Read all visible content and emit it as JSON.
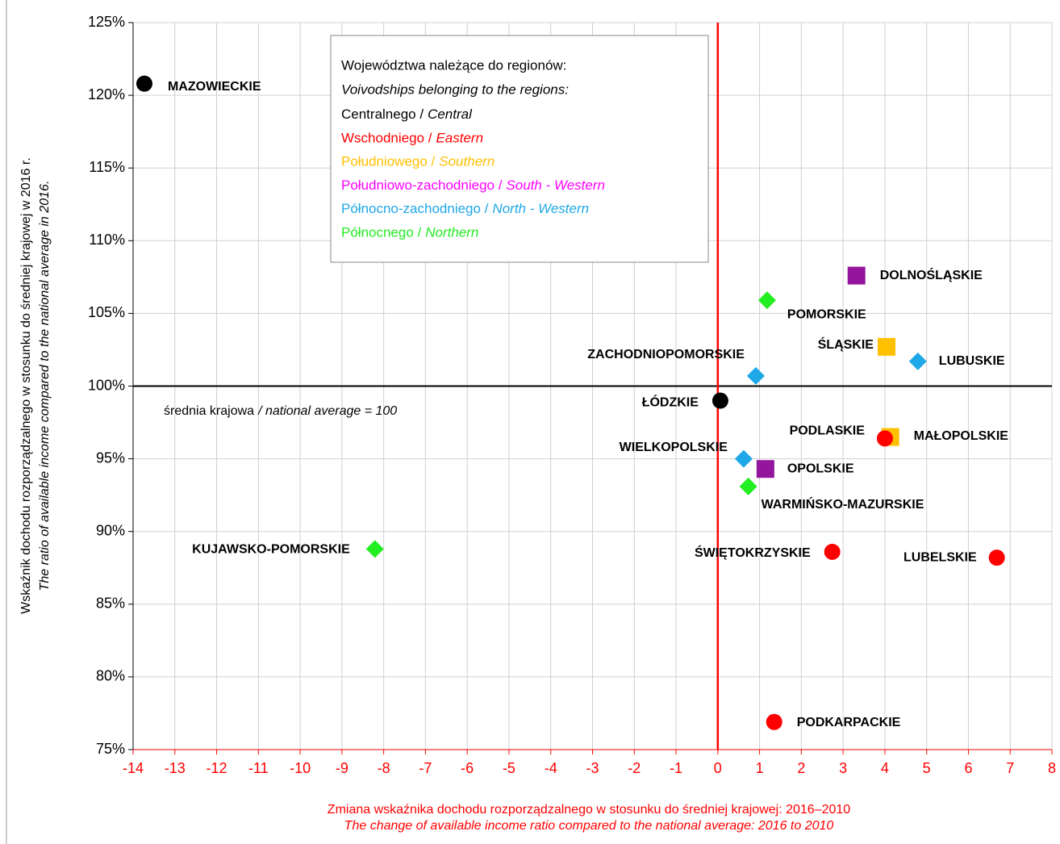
{
  "chart_data": {
    "type": "scatter",
    "xlabel": "Zmiana wskaźnika dochodu rozporządzalnego w stosunku do średniej krajowej: 2016–2010",
    "xlabel_en": "The change of available income ratio compared to the national average: 2016 to 2010",
    "ylabel": "Wskaźnik dochodu rozporządzalnego w stosunku do średniej krajowej w 2016 r.",
    "ylabel_en": "The ratio of available income compared to the national average in 2016.",
    "xlim": [
      -14,
      8
    ],
    "xticks": [
      -14,
      -13,
      -12,
      -11,
      -10,
      -9,
      -8,
      -7,
      -6,
      -5,
      -4,
      -3,
      -2,
      -1,
      0,
      1,
      2,
      3,
      4,
      5,
      6,
      7,
      8
    ],
    "ylim": [
      75,
      125
    ],
    "yticks": [
      {
        "value": 75,
        "label": "75%"
      },
      {
        "value": 80,
        "label": "80%"
      },
      {
        "value": 85,
        "label": "85%"
      },
      {
        "value": 90,
        "label": "90%"
      },
      {
        "value": 95,
        "label": "95%"
      },
      {
        "value": 100,
        "label": "100%"
      },
      {
        "value": 105,
        "label": "105%"
      },
      {
        "value": 110,
        "label": "110%"
      },
      {
        "value": 115,
        "label": "115%"
      },
      {
        "value": 120,
        "label": "120%"
      },
      {
        "value": 125,
        "label": "125%"
      }
    ],
    "grid": true,
    "reference_lines": {
      "x": 0,
      "y": 100
    },
    "annotation": {
      "text": "średnia krajowa",
      "text_en": "/ national average = 100"
    },
    "legend": {
      "heading": "Województwa należące do regionów:",
      "heading_en": "Voivodships belonging to the regions:",
      "entries": [
        {
          "name": "Centralnego /",
          "name_en": "Central",
          "color": "#000000"
        },
        {
          "name": "Wschodniego /",
          "name_en": "Eastern",
          "color": "#ff0000"
        },
        {
          "name": "Południowego /",
          "name_en": "Southern",
          "color": "#ffc000"
        },
        {
          "name": "Południowo-zachodniego /",
          "name_en": "South - Western",
          "color": "#ff00ff"
        },
        {
          "name": "Północno-zachodniego /",
          "name_en": "North - Western",
          "color": "#1fa8e8"
        },
        {
          "name": "Północnego /",
          "name_en": "Northern",
          "color": "#22ee22"
        }
      ]
    },
    "points": [
      {
        "name": "MAZOWIECKIE",
        "x": -13.73,
        "y": 120.8,
        "color": "#000000",
        "marker": "circle"
      },
      {
        "name": "DOLNOŚLĄSKIE",
        "x": 3.32,
        "y": 107.6,
        "color": "#93169c",
        "marker": "square"
      },
      {
        "name": "POMORSKIE",
        "x": 1.18,
        "y": 105.9,
        "color": "#22ee22",
        "marker": "diamond"
      },
      {
        "name": "ŚLĄSKIE",
        "x": 4.04,
        "y": 102.7,
        "color": "#ffc000",
        "marker": "square"
      },
      {
        "name": "LUBUSKIE",
        "x": 4.79,
        "y": 101.7,
        "color": "#1fa8e8",
        "marker": "diamond"
      },
      {
        "name": "ZACHODNIOPOMORSKIE",
        "x": 0.91,
        "y": 100.7,
        "color": "#1fa8e8",
        "marker": "diamond"
      },
      {
        "name": "ŁÓDZKIE",
        "x": 0.06,
        "y": 99.0,
        "color": "#000000",
        "marker": "circle"
      },
      {
        "name": "MAŁOPOLSKIE",
        "x": 4.13,
        "y": 96.5,
        "color": "#ffc000",
        "marker": "square"
      },
      {
        "name": "PODLASKIE",
        "x": 4.0,
        "y": 96.4,
        "color": "#ff0000",
        "marker": "circle"
      },
      {
        "name": "WIELKOPOLSKIE",
        "x": 0.62,
        "y": 95.0,
        "color": "#1fa8e8",
        "marker": "diamond"
      },
      {
        "name": "OPOLSKIE",
        "x": 1.14,
        "y": 94.3,
        "color": "#93169c",
        "marker": "square"
      },
      {
        "name": "WARMIŃSKO-MAZURSKIE",
        "x": 0.73,
        "y": 93.1,
        "color": "#22ee22",
        "marker": "diamond"
      },
      {
        "name": "KUJAWSKO-POMORSKIE",
        "x": -8.21,
        "y": 88.8,
        "color": "#22ee22",
        "marker": "diamond"
      },
      {
        "name": "ŚWIĘTOKRZYSKIE",
        "x": 2.74,
        "y": 88.6,
        "color": "#ff0000",
        "marker": "circle"
      },
      {
        "name": "LUBELSKIE",
        "x": 6.68,
        "y": 88.2,
        "color": "#ff0000",
        "marker": "circle"
      },
      {
        "name": "PODKARPACKIE",
        "x": 1.35,
        "y": 76.9,
        "color": "#ff0000",
        "marker": "circle"
      }
    ]
  }
}
